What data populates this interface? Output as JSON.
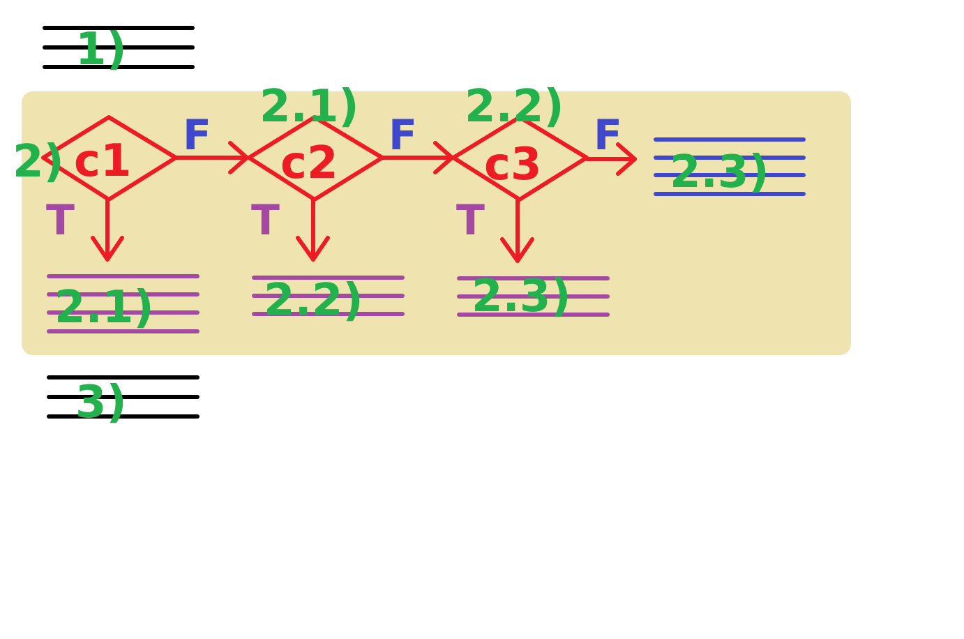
{
  "colors": {
    "region_bg": "#efe4b0",
    "condition": "#ed1c24",
    "label": "#22b14c",
    "false_branch": "#3f48cc",
    "true_branch": "#a349a4",
    "statement_lines": "#000000"
  },
  "step1": {
    "label": "1)"
  },
  "step2": {
    "label": "2)"
  },
  "step3": {
    "label": "3)"
  },
  "conditions": [
    {
      "name": "c1",
      "true_label": "T",
      "false_label": "F",
      "true_target": "2.1)",
      "top_label": ""
    },
    {
      "name": "c2",
      "true_label": "T",
      "false_label": "F",
      "true_target": "2.2)",
      "top_label": "2.1)"
    },
    {
      "name": "c3",
      "true_label": "T",
      "false_label": "F",
      "true_target": "2.3)",
      "top_label": "2.2)"
    }
  ],
  "final_false_target": "2.3)"
}
